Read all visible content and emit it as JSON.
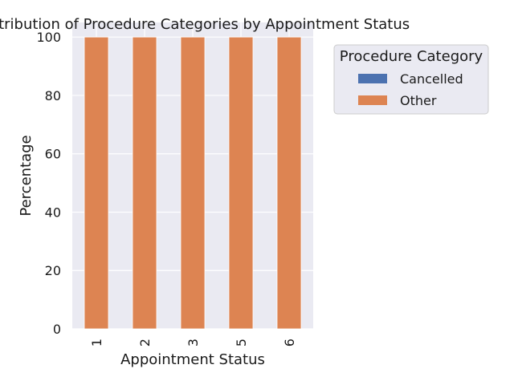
{
  "chart_data": {
    "type": "bar",
    "stacked": true,
    "title": "Distribution of Procedure Categories by Appointment Status",
    "xlabel": "Appointment Status",
    "ylabel": "Percentage",
    "categories": [
      "1",
      "2",
      "3",
      "5",
      "6"
    ],
    "series": [
      {
        "name": "Cancelled",
        "color": "#4c72b0",
        "values": [
          0,
          0,
          0,
          0,
          0
        ]
      },
      {
        "name": "Other",
        "color": "#dd8452",
        "values": [
          100,
          100,
          100,
          100,
          100
        ]
      }
    ],
    "ylim": [
      0,
      105
    ],
    "yticks": [
      0,
      20,
      40,
      60,
      80,
      100
    ],
    "grid": true,
    "legend": {
      "title": "Procedure Category",
      "placement": "outside-right"
    }
  }
}
